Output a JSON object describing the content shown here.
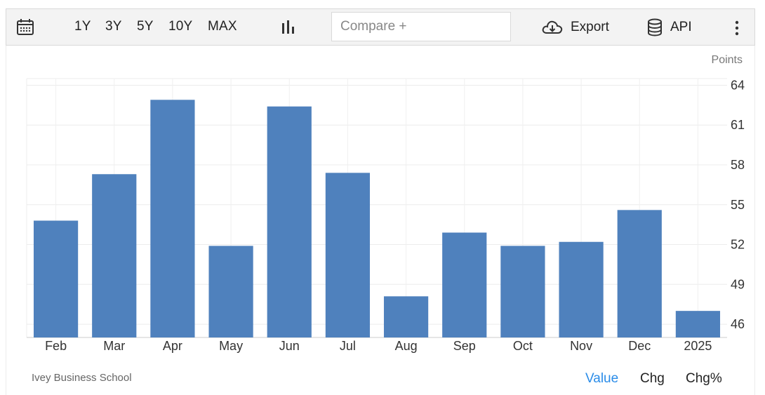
{
  "toolbar": {
    "ranges": [
      "1Y",
      "3Y",
      "5Y",
      "10Y",
      "MAX"
    ],
    "compare_placeholder": "Compare +",
    "export_label": "Export",
    "api_label": "API"
  },
  "chart_data": {
    "type": "bar",
    "unit": "Points",
    "categories": [
      "Feb",
      "Mar",
      "Apr",
      "May",
      "Jun",
      "Jul",
      "Aug",
      "Sep",
      "Oct",
      "Nov",
      "Dec",
      "2025"
    ],
    "values": [
      53.8,
      57.3,
      62.9,
      51.9,
      62.4,
      57.4,
      48.1,
      52.9,
      51.9,
      52.2,
      54.6,
      47.0
    ],
    "ylim": [
      45,
      64.5
    ],
    "yticks": [
      46,
      49,
      52,
      55,
      58,
      61,
      64
    ],
    "bar_color": "#4f81bd",
    "grid": true,
    "y_axis_position": "right"
  },
  "footer": {
    "source": "Ivey Business School",
    "tabs": [
      "Value",
      "Chg",
      "Chg%"
    ],
    "active_tab": "Value",
    "active_color": "#2a8ce8"
  }
}
